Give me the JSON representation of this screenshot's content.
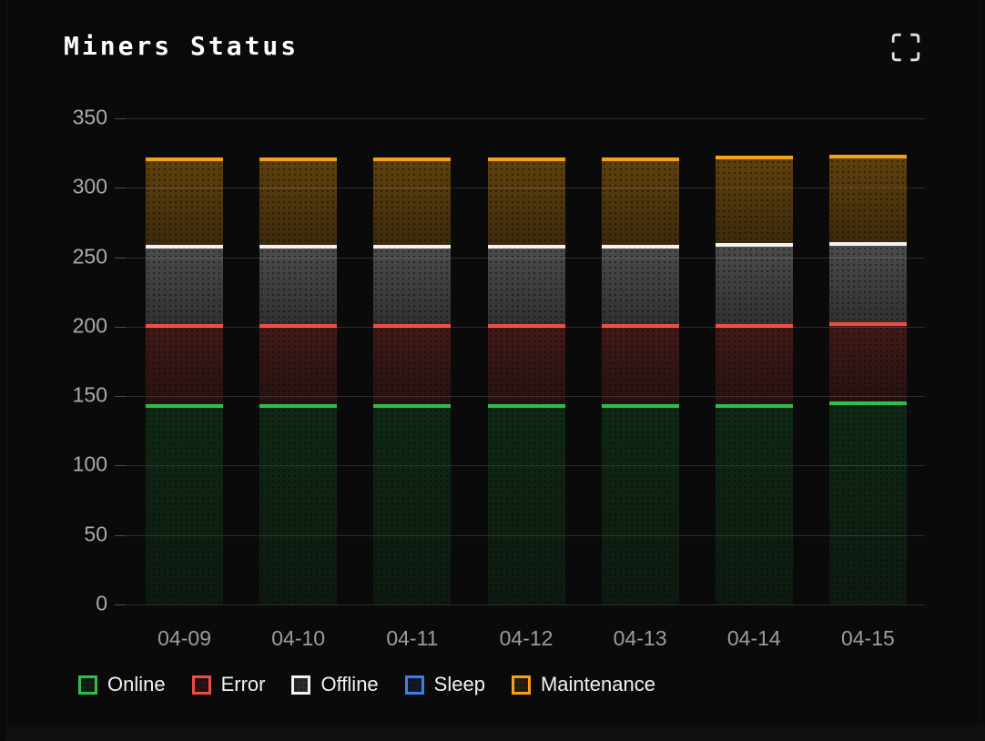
{
  "header": {
    "title": "Miners Status"
  },
  "chart_data": {
    "type": "bar",
    "stacked": true,
    "title": "Miners Status",
    "categories": [
      "04-09",
      "04-10",
      "04-11",
      "04-12",
      "04-13",
      "04-14",
      "04-15"
    ],
    "series": [
      {
        "name": "Online",
        "color": "#2ebd4e",
        "values": [
          144,
          144,
          144,
          144,
          144,
          144,
          146
        ]
      },
      {
        "name": "Error",
        "color": "#ef4c45",
        "values": [
          58,
          58,
          58,
          58,
          58,
          58,
          57
        ]
      },
      {
        "name": "Offline",
        "color": "#f2f2f2",
        "values": [
          57,
          57,
          57,
          57,
          57,
          58,
          58
        ]
      },
      {
        "name": "Sleep",
        "color": "#3f7ee8",
        "values": [
          0,
          0,
          0,
          0,
          0,
          0,
          0
        ]
      },
      {
        "name": "Maintenance",
        "color": "#f5a116",
        "values": [
          63,
          63,
          63,
          63,
          63,
          63,
          63
        ]
      }
    ],
    "xlabel": "",
    "ylabel": "",
    "ylim": [
      0,
      350
    ],
    "yticks": [
      0,
      50,
      100,
      150,
      200,
      250,
      300,
      350
    ],
    "grid": "horizontal",
    "legend_position": "bottom"
  }
}
